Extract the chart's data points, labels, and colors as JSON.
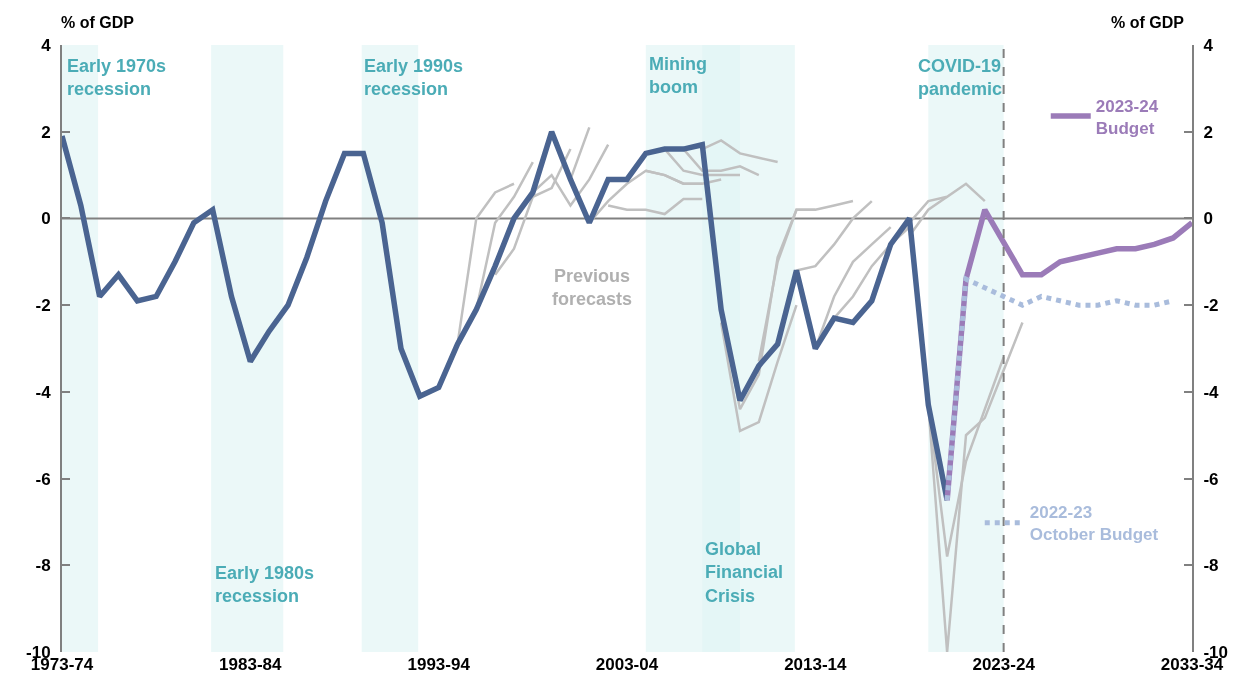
{
  "chart_data": {
    "type": "line",
    "ylabel": "% of GDP",
    "y2label": "% of GDP",
    "xlim": [
      "1973",
      "2033"
    ],
    "xticks": [
      {
        "value": "1973",
        "label": "1973-74"
      },
      {
        "value": "1983",
        "label": "1983-84"
      },
      {
        "value": "1993",
        "label": "1993-94"
      },
      {
        "value": "2003",
        "label": "2003-04"
      },
      {
        "value": "2013",
        "label": "2013-14"
      },
      {
        "value": "2023",
        "label": "2023-24"
      },
      {
        "value": "2033",
        "label": "2033-34"
      }
    ],
    "ylim": [
      -10,
      4
    ],
    "yticks": [
      -10,
      -8,
      -6,
      -4,
      -2,
      0,
      2,
      4
    ],
    "y2lim": [
      -10,
      4
    ],
    "y2ticks": [
      -10,
      -8,
      -6,
      -4,
      -2,
      0,
      2,
      4
    ],
    "grid": false,
    "legend": "right",
    "marker": "none",
    "line_style": "solid",
    "series": [
      {
        "color": "#c0c0c0",
        "x": [
          "1994",
          "1995",
          "1996",
          "1997"
        ],
        "values": [
          -2.9,
          0.0,
          0.6,
          0.8
        ]
      },
      {
        "color": "#c0c0c0",
        "x": [
          "1995",
          "1996",
          "1997",
          "1998"
        ],
        "values": [
          -2.1,
          -0.1,
          0.5,
          1.3
        ]
      },
      {
        "color": "#c0c0c0",
        "x": [
          "1996",
          "1997",
          "1998",
          "1999",
          "2000"
        ],
        "values": [
          -1.3,
          -0.7,
          0.5,
          0.7,
          1.6
        ]
      },
      {
        "color": "#c0c0c0",
        "x": [
          "1998",
          "1999",
          "2000",
          "2001",
          "2002"
        ],
        "values": [
          0.6,
          1.0,
          0.3,
          0.9,
          1.7
        ]
      },
      {
        "color": "#c0c0c0",
        "x": [
          "1999",
          "2000",
          "2001"
        ],
        "values": [
          2.0,
          0.9,
          2.1
        ]
      },
      {
        "color": "#c0c0c0",
        "x": [
          "2001",
          "2002",
          "2003",
          "2004",
          "2005",
          "2006",
          "2007"
        ],
        "values": [
          -0.1,
          0.4,
          0.8,
          1.1,
          1.0,
          0.8,
          0.8
        ]
      },
      {
        "color": "#c0c0c0",
        "x": [
          "2002",
          "2003",
          "2004",
          "2005",
          "2006",
          "2007"
        ],
        "values": [
          0.3,
          0.2,
          0.2,
          0.1,
          0.45,
          0.45
        ]
      },
      {
        "color": "#c0c0c0",
        "x": [
          "2004",
          "2005",
          "2006",
          "2007",
          "2008"
        ],
        "values": [
          1.1,
          1.0,
          0.8,
          0.8,
          0.9
        ]
      },
      {
        "color": "#c0c0c0",
        "x": [
          "2005",
          "2006",
          "2007",
          "2008",
          "2009"
        ],
        "values": [
          1.6,
          1.1,
          1.0,
          1.0,
          1.0
        ]
      },
      {
        "color": "#c0c0c0",
        "x": [
          "2006",
          "2007",
          "2008",
          "2009",
          "2010"
        ],
        "values": [
          1.6,
          1.1,
          1.1,
          1.2,
          1.0
        ]
      },
      {
        "color": "#c0c0c0",
        "x": [
          "2007",
          "2008",
          "2009",
          "2010",
          "2011"
        ],
        "values": [
          1.6,
          1.8,
          1.5,
          1.4,
          1.3
        ]
      },
      {
        "color": "#c0c0c0",
        "x": [
          "2008",
          "2009",
          "2010",
          "2011",
          "2012"
        ],
        "values": [
          -2.4,
          -4.9,
          -4.7,
          -3.3,
          -2.0
        ]
      },
      {
        "color": "#c0c0c0",
        "x": [
          "2008",
          "2009",
          "2010",
          "2011",
          "2012",
          "2013"
        ],
        "values": [
          -2.1,
          -4.4,
          -3.6,
          -0.9,
          0.2,
          0.2
        ]
      },
      {
        "color": "#c0c0c0",
        "x": [
          "2010",
          "2011",
          "2012",
          "2013",
          "2014",
          "2015"
        ],
        "values": [
          -3.3,
          -1.0,
          0.2,
          0.2,
          0.3,
          0.4
        ]
      },
      {
        "color": "#c0c0c0",
        "x": [
          "2012",
          "2013",
          "2014",
          "2015",
          "2016"
        ],
        "values": [
          -1.2,
          -1.1,
          -0.6,
          0.0,
          0.4
        ]
      },
      {
        "color": "#c0c0c0",
        "x": [
          "2013",
          "2014",
          "2015",
          "2016",
          "2017"
        ],
        "values": [
          -3.0,
          -1.8,
          -1.0,
          -0.6,
          -0.2
        ]
      },
      {
        "color": "#c0c0c0",
        "x": [
          "2014",
          "2015",
          "2016",
          "2017",
          "2018"
        ],
        "values": [
          -2.3,
          -1.8,
          -1.1,
          -0.6,
          -0.2
        ]
      },
      {
        "color": "#c0c0c0",
        "x": [
          "2017",
          "2018",
          "2019",
          "2020",
          "2021",
          "2022"
        ],
        "values": [
          -0.6,
          -0.1,
          0.4,
          0.5,
          0.8,
          0.4
        ]
      },
      {
        "color": "#c0c0c0",
        "x": [
          "2018",
          "2019",
          "2020"
        ],
        "values": [
          -0.4,
          0.2,
          0.5
        ]
      },
      {
        "color": "#c0c0c0",
        "x": [
          "2019",
          "2020",
          "2021",
          "2022",
          "2023",
          "2024"
        ],
        "values": [
          -4.3,
          -10,
          -5.0,
          -4.6,
          -3.5,
          -2.4
        ]
      },
      {
        "color": "#c0c0c0",
        "x": [
          "2019",
          "2020",
          "2021",
          "2022",
          "2023"
        ],
        "values": [
          -4.3,
          -7.8,
          -5.6,
          -4.4,
          -3.2
        ]
      },
      {
        "color": "#4a6491",
        "x": [
          "1973",
          "1974",
          "1975",
          "1976",
          "1977",
          "1978",
          "1979",
          "1980",
          "1981",
          "1982",
          "1983",
          "1984",
          "1985",
          "1986",
          "1987",
          "1988",
          "1989",
          "1990",
          "1991",
          "1992",
          "1993",
          "1994",
          "1995",
          "1996",
          "1997",
          "1998",
          "1999",
          "2000",
          "2001",
          "2002",
          "2003",
          "2004",
          "2005",
          "2006",
          "2007",
          "2008",
          "2009",
          "2010",
          "2011",
          "2012",
          "2013",
          "2014",
          "2015",
          "2016",
          "2017",
          "2018",
          "2019",
          "2020"
        ],
        "values": [
          1.9,
          0.3,
          -1.8,
          -1.3,
          -1.9,
          -1.8,
          -1.0,
          -0.1,
          0.2,
          -1.8,
          -3.3,
          -2.6,
          -2.0,
          -0.9,
          0.4,
          1.5,
          1.5,
          -0.1,
          -3.0,
          -4.1,
          -3.9,
          -2.9,
          -2.1,
          -1.1,
          0.0,
          0.6,
          2.0,
          0.9,
          -0.1,
          0.9,
          0.9,
          1.5,
          1.6,
          1.6,
          1.7,
          -2.1,
          -4.2,
          -3.4,
          -2.9,
          -1.2,
          -3.0,
          -2.3,
          -2.4,
          -1.9,
          -0.6,
          0.0,
          -4.3,
          -6.5
        ]
      },
      {
        "name": "2023-24\nBudget",
        "color": "#9b7bb8",
        "x": [
          "2020",
          "2021",
          "2022",
          "2023",
          "2024",
          "2025",
          "2026",
          "2027",
          "2028",
          "2029",
          "2030",
          "2031",
          "2032",
          "2033"
        ],
        "values": [
          -6.5,
          -1.4,
          0.2,
          -0.55,
          -1.3,
          -1.3,
          -1.0,
          -0.9,
          -0.8,
          -0.7,
          -0.7,
          -0.6,
          -0.45,
          -0.1
        ]
      },
      {
        "name": "2022-23\nOctober Budget",
        "color": "#a9bcdc",
        "line_style": "dotted",
        "x": [
          "2020",
          "2021",
          "2022",
          "2023",
          "2024",
          "2025",
          "2026",
          "2027",
          "2028",
          "2029",
          "2030",
          "2031",
          "2032"
        ],
        "values": [
          -6.5,
          -1.4,
          -1.6,
          -1.8,
          -2.0,
          -1.8,
          -1.9,
          -2.0,
          -2.0,
          -1.9,
          -2.0,
          -2.0,
          -1.9
        ]
      }
    ],
    "bands": [
      {
        "axis": "x",
        "from": "1973",
        "to": "1974-12",
        "color": "#e0f5f5"
      },
      {
        "axis": "x",
        "from": "1980-12",
        "to": "1984-10",
        "color": "#e0f5f5"
      },
      {
        "axis": "x",
        "from": "1988-12",
        "to": "1991-12",
        "color": "#e0f5f5"
      },
      {
        "axis": "x",
        "from": "2004",
        "to": "2011-12",
        "color": "#e0f5f5"
      },
      {
        "axis": "x",
        "from": "2007",
        "to": "2009",
        "color": "#e0f5f5"
      },
      {
        "axis": "x",
        "from": "2019",
        "to": "2023",
        "color": "#e0f5f5"
      }
    ],
    "ref_lines": [
      {
        "axis": "x",
        "value": "2023",
        "color": "#808080",
        "line_style": "dashed"
      },
      {
        "axis": "y",
        "value": 0,
        "color": "#808080",
        "line_style": "solid"
      }
    ],
    "annotations": [
      {
        "text": "Early 1970s\nrecession",
        "x": "1973-03",
        "y": 3.8
      },
      {
        "text": "Early 1980s\nrecession",
        "x": "1981",
        "y": -7.9
      },
      {
        "text": "Early 1990s\nrecession",
        "x": "1988-12",
        "y": 3.8
      },
      {
        "text": "Mining\nboom",
        "x": "2004-02",
        "y": 3.85
      },
      {
        "text": "Global\nFinancial\nCrisis",
        "x": "2007-01-20",
        "y": -7.35
      },
      {
        "text": "COVID-19\npandemic",
        "x": "2023",
        "y": 3.8
      },
      "Previous\nforecasts"
    ]
  }
}
